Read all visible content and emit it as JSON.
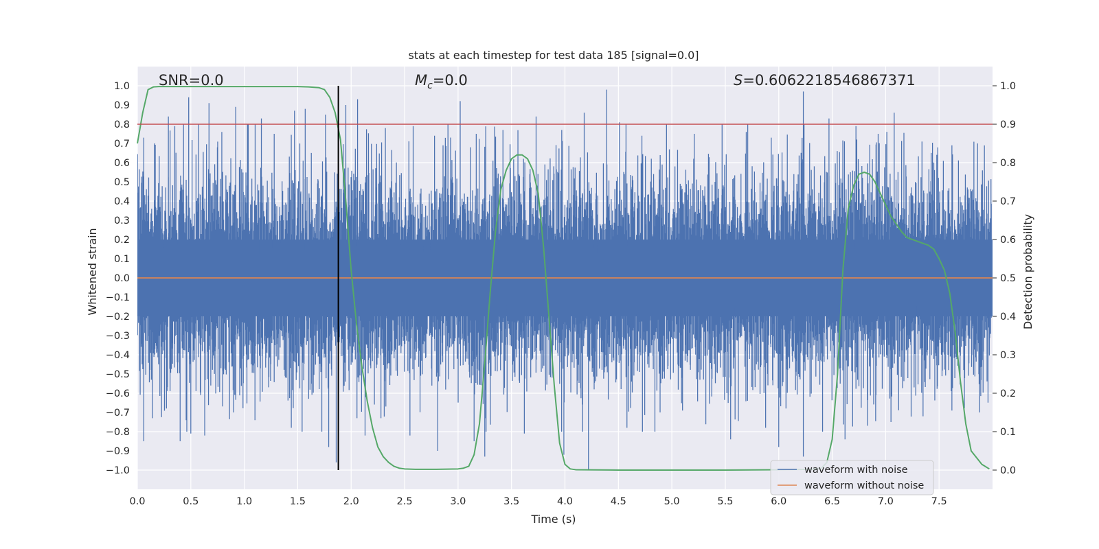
{
  "chart_data": {
    "type": "line",
    "title": "stats at each timestep for test data 185 [signal=0.0]",
    "xlabel": "Time (s)",
    "ylabel_left": "Whitened strain",
    "ylabel_right": "Detection probability",
    "xlim": [
      0.0,
      8.0
    ],
    "ylim_left": [
      -1.1,
      1.1
    ],
    "ylim_right": [
      -0.05,
      1.05
    ],
    "x_ticks": [
      "0.0",
      "0.5",
      "1.0",
      "1.5",
      "2.0",
      "2.5",
      "3.0",
      "3.5",
      "4.0",
      "4.5",
      "5.0",
      "5.5",
      "6.0",
      "6.5",
      "7.0",
      "7.5"
    ],
    "y_ticks_left": [
      "1.0",
      "0.9",
      "0.8",
      "0.7",
      "0.6",
      "0.5",
      "0.4",
      "0.3",
      "0.2",
      "0.1",
      "0.0",
      "−0.1",
      "−0.2",
      "−0.3",
      "−0.4",
      "−0.5",
      "−0.6",
      "−0.7",
      "−0.8",
      "−0.9",
      "−1.0"
    ],
    "y_ticks_right": [
      "1.0",
      "0.9",
      "0.8",
      "0.7",
      "0.6",
      "0.5",
      "0.4",
      "0.3",
      "0.2",
      "0.1",
      "0.0"
    ],
    "annotations": {
      "snr": "SNR=0.0",
      "mc_symbol": "M",
      "mc_sub": "c",
      "mc_value": "=0.0",
      "s_symbol": "S",
      "s_value": "=0.6062218546867371"
    },
    "threshold_line": {
      "axis": "right",
      "value": 0.9,
      "color": "#c44e52"
    },
    "vertical_marker": {
      "x": 1.88,
      "color": "#000000"
    },
    "legend": {
      "placement": "lower-right",
      "entries": [
        {
          "label": "waveform with noise",
          "color": "#4c72b0"
        },
        {
          "label": "waveform without noise",
          "color": "#dd8452"
        }
      ]
    },
    "series": [
      {
        "name": "waveform with noise",
        "axis": "left",
        "color": "#4c72b0",
        "description": "dense whitened noise strain, ~4096 Hz over 8 s, peaks ±1.0",
        "envelope_peaks": [
          [
            0.06,
            0.73
          ],
          [
            0.16,
            0.7
          ],
          [
            0.29,
            0.84
          ],
          [
            0.35,
            0.79
          ],
          [
            0.48,
            0.94
          ],
          [
            0.67,
            0.91
          ],
          [
            0.79,
            0.76
          ],
          [
            0.92,
            0.89
          ],
          [
            1.03,
            0.8
          ],
          [
            1.16,
            0.83
          ],
          [
            1.28,
            0.75
          ],
          [
            1.47,
            0.87
          ],
          [
            1.57,
            0.88
          ],
          [
            1.76,
            0.85
          ],
          [
            1.95,
            0.9
          ],
          [
            2.06,
            0.93
          ],
          [
            2.32,
            0.78
          ],
          [
            2.58,
            0.79
          ],
          [
            2.78,
            0.74
          ],
          [
            3.02,
            0.92
          ],
          [
            3.17,
            0.75
          ],
          [
            3.42,
            0.77
          ],
          [
            3.73,
            0.84
          ],
          [
            3.97,
            0.77
          ],
          [
            4.18,
            0.86
          ],
          [
            4.39,
            0.98
          ],
          [
            4.51,
            0.81
          ],
          [
            4.72,
            0.74
          ],
          [
            4.95,
            0.8
          ],
          [
            5.21,
            0.75
          ],
          [
            5.47,
            0.8
          ],
          [
            5.71,
            0.8
          ],
          [
            5.93,
            0.73
          ],
          [
            6.23,
            0.97
          ],
          [
            6.47,
            0.83
          ],
          [
            6.73,
            0.72
          ],
          [
            6.93,
            0.75
          ],
          [
            7.08,
            0.86
          ],
          [
            7.34,
            0.71
          ],
          [
            7.62,
            0.69
          ],
          [
            7.86,
            0.7
          ]
        ],
        "envelope_troughs": [
          [
            0.06,
            -0.85
          ],
          [
            0.14,
            -0.73
          ],
          [
            0.4,
            -0.85
          ],
          [
            0.5,
            -0.81
          ],
          [
            0.63,
            -0.82
          ],
          [
            0.9,
            -0.7
          ],
          [
            1.1,
            -0.74
          ],
          [
            1.44,
            -0.78
          ],
          [
            1.79,
            -0.88
          ],
          [
            1.86,
            -0.96
          ],
          [
            2.13,
            -0.82
          ],
          [
            2.55,
            -0.82
          ],
          [
            2.81,
            -0.9
          ],
          [
            3.15,
            -0.85
          ],
          [
            3.25,
            -0.93
          ],
          [
            3.62,
            -0.81
          ],
          [
            3.99,
            -0.92
          ],
          [
            4.22,
            -1.0
          ],
          [
            4.58,
            -0.78
          ],
          [
            4.89,
            -0.7
          ],
          [
            5.1,
            -0.69
          ],
          [
            5.55,
            -0.84
          ],
          [
            6.0,
            -0.88
          ],
          [
            6.23,
            -0.93
          ],
          [
            6.41,
            -0.8
          ],
          [
            6.62,
            -0.84
          ],
          [
            7.05,
            -0.75
          ],
          [
            7.35,
            -0.72
          ],
          [
            7.62,
            -0.69
          ],
          [
            7.88,
            -0.7
          ]
        ]
      },
      {
        "name": "waveform without noise",
        "axis": "left",
        "color": "#dd8452",
        "x": [
          0.0,
          8.0
        ],
        "y": [
          0.0,
          0.0
        ]
      },
      {
        "name": "detection probability",
        "axis": "right",
        "color": "#55a868",
        "x": [
          0.0,
          0.05,
          0.1,
          0.15,
          0.2,
          0.3,
          0.5,
          0.75,
          1.0,
          1.25,
          1.5,
          1.6,
          1.7,
          1.75,
          1.8,
          1.85,
          1.9,
          1.95,
          2.0,
          2.05,
          2.1,
          2.15,
          2.2,
          2.25,
          2.3,
          2.35,
          2.4,
          2.45,
          2.5,
          2.6,
          2.8,
          3.0,
          3.05,
          3.1,
          3.15,
          3.2,
          3.25,
          3.3,
          3.35,
          3.4,
          3.45,
          3.5,
          3.55,
          3.6,
          3.65,
          3.7,
          3.75,
          3.8,
          3.85,
          3.9,
          3.95,
          4.0,
          4.05,
          4.1,
          4.5,
          5.0,
          5.5,
          6.0,
          6.3,
          6.4,
          6.45,
          6.5,
          6.55,
          6.6,
          6.65,
          6.7,
          6.75,
          6.8,
          6.85,
          6.9,
          6.95,
          7.0,
          7.05,
          7.1,
          7.15,
          7.2,
          7.3,
          7.4,
          7.45,
          7.5,
          7.55,
          7.6,
          7.65,
          7.7,
          7.75,
          7.8,
          7.9,
          7.97
        ],
        "y": [
          0.85,
          0.93,
          0.99,
          0.997,
          0.998,
          0.998,
          0.998,
          0.998,
          0.998,
          0.998,
          0.998,
          0.997,
          0.995,
          0.99,
          0.97,
          0.93,
          0.86,
          0.7,
          0.52,
          0.38,
          0.27,
          0.18,
          0.11,
          0.06,
          0.035,
          0.02,
          0.01,
          0.005,
          0.003,
          0.002,
          0.002,
          0.003,
          0.005,
          0.01,
          0.04,
          0.12,
          0.28,
          0.46,
          0.62,
          0.73,
          0.78,
          0.81,
          0.82,
          0.82,
          0.81,
          0.78,
          0.72,
          0.58,
          0.4,
          0.22,
          0.07,
          0.015,
          0.003,
          0.001,
          0.0,
          0.0,
          0.0,
          0.001,
          0.002,
          0.005,
          0.02,
          0.08,
          0.25,
          0.52,
          0.68,
          0.74,
          0.77,
          0.775,
          0.77,
          0.75,
          0.72,
          0.69,
          0.66,
          0.64,
          0.62,
          0.605,
          0.595,
          0.585,
          0.575,
          0.55,
          0.52,
          0.46,
          0.36,
          0.23,
          0.12,
          0.05,
          0.015,
          0.003
        ]
      }
    ]
  }
}
